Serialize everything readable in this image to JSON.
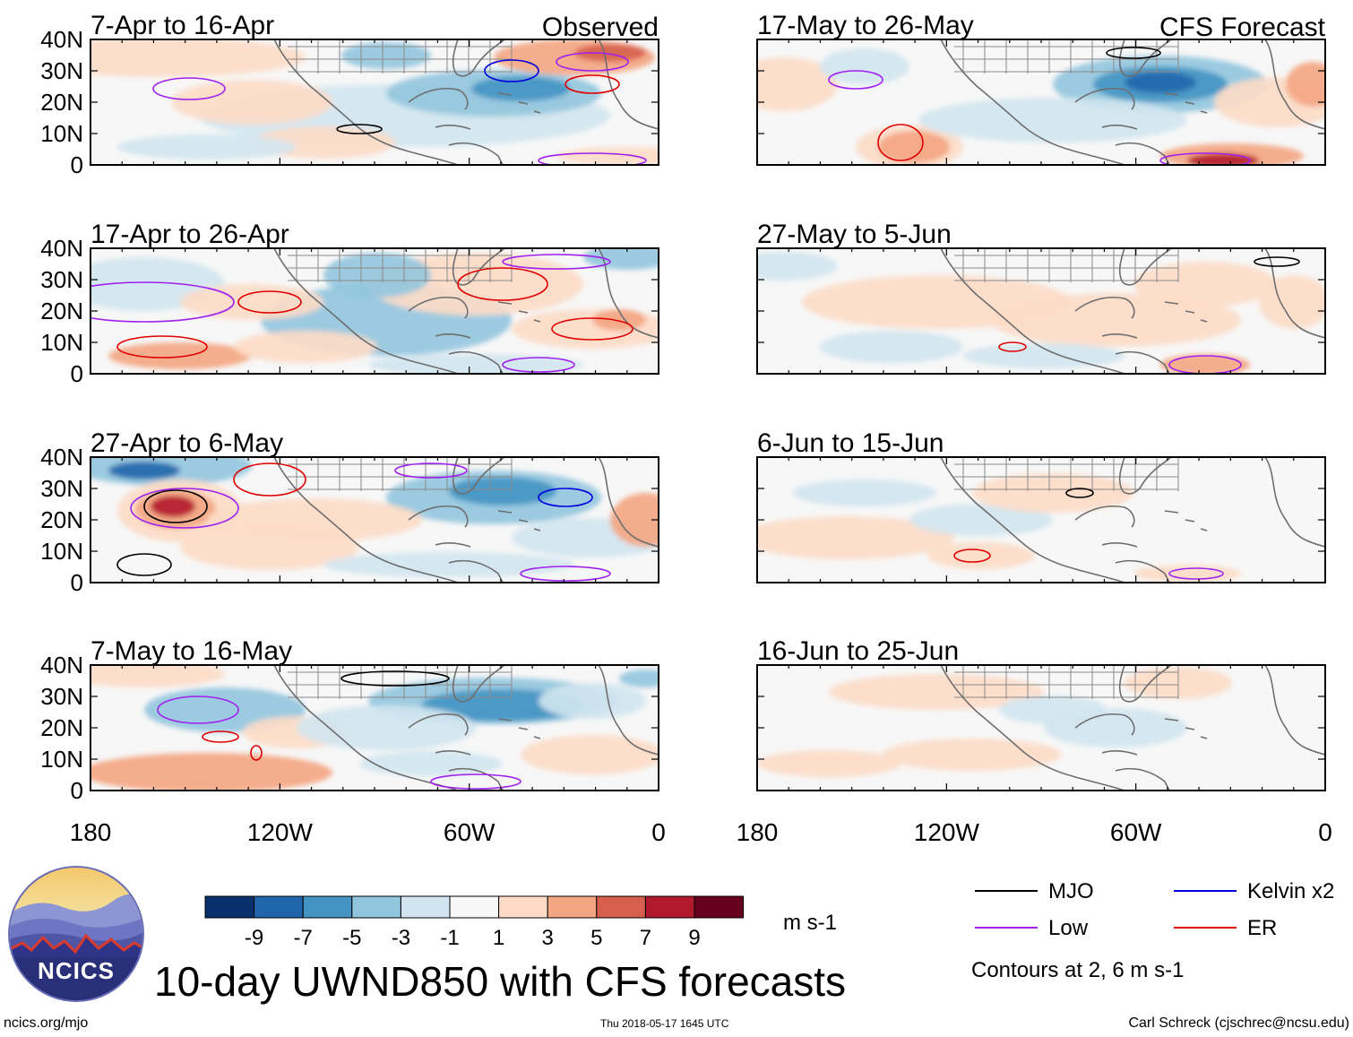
{
  "title": "10-day UWND850 with CFS forecasts",
  "tags": {
    "observed": "Observed",
    "forecast": "CFS Forecast"
  },
  "panels": [
    {
      "title": "7-Apr to 16-Apr",
      "group": "observed"
    },
    {
      "title": "17-Apr to 26-Apr",
      "group": "observed"
    },
    {
      "title": "27-Apr to 6-May",
      "group": "observed"
    },
    {
      "title": "7-May to 16-May",
      "group": "observed"
    },
    {
      "title": "17-May to 26-May",
      "group": "forecast"
    },
    {
      "title": "27-May to 5-Jun",
      "group": "forecast"
    },
    {
      "title": "6-Jun to 15-Jun",
      "group": "forecast"
    },
    {
      "title": "16-Jun to 25-Jun",
      "group": "forecast"
    }
  ],
  "lat_labels": [
    "40N",
    "30N",
    "20N",
    "10N",
    "0"
  ],
  "lon_labels": [
    "180",
    "120W",
    "60W",
    "0"
  ],
  "colorbar": {
    "labels": [
      "-9",
      "-7",
      "-5",
      "-3",
      "-1",
      "1",
      "3",
      "5",
      "7",
      "9"
    ],
    "colors": [
      "#08306b",
      "#2166ac",
      "#4393c3",
      "#92c5de",
      "#d1e5f0",
      "#f7f7f7",
      "#fddbc7",
      "#f4a582",
      "#d6604d",
      "#b2182b",
      "#67001f"
    ],
    "unit": "m s-1"
  },
  "legend": {
    "items": [
      {
        "label": "MJO",
        "color": "#000000"
      },
      {
        "label": "Kelvin x2",
        "color": "#0000dd"
      },
      {
        "label": "Low",
        "color": "#a020f0"
      },
      {
        "label": "ER",
        "color": "#e00000"
      }
    ],
    "note": "Contours at 2, 6 m s-1"
  },
  "logo_text": "NCICS",
  "footer": {
    "url": "ncics.org/mjo",
    "timestamp": "Thu 2018-05-17 1645 UTC",
    "credit": "Carl Schreck (cjschrec@ncsu.edu)"
  }
}
